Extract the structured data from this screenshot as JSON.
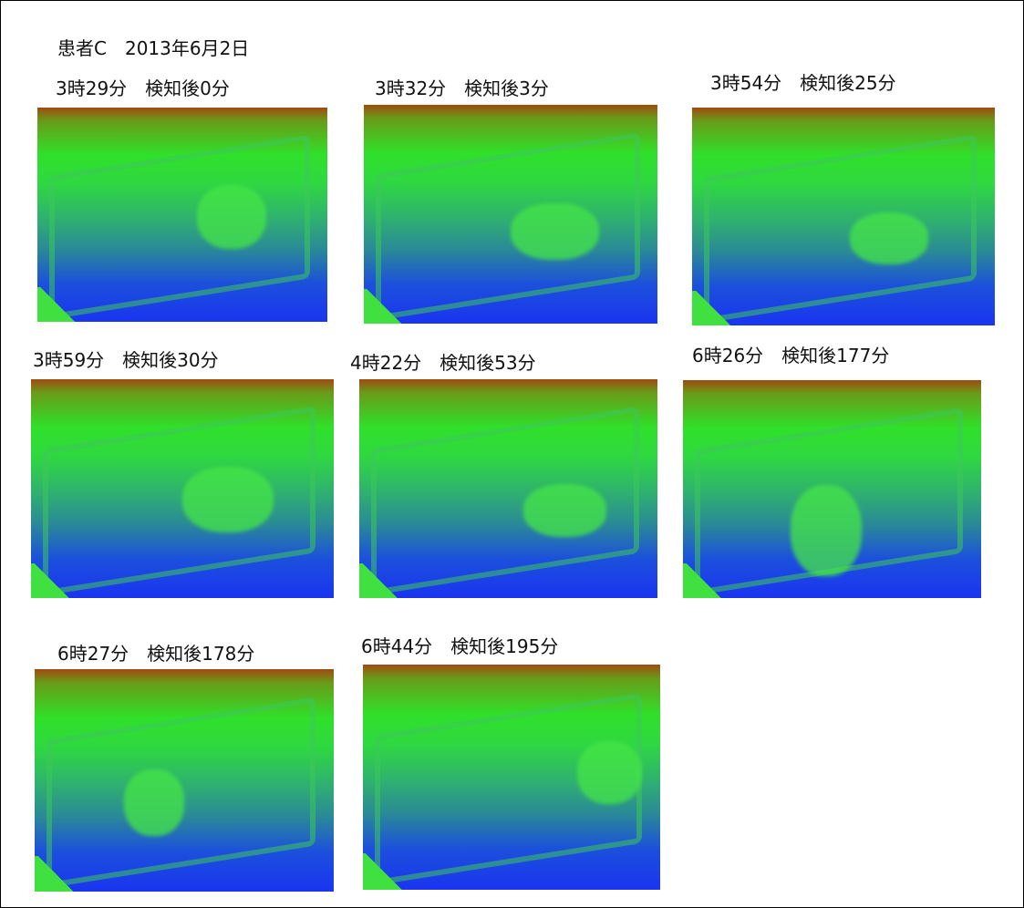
{
  "header": {
    "title": "患者C　2013年6月2日"
  },
  "panels": [
    {
      "label": "3時29分　検知後0分"
    },
    {
      "label": "3時32分　検知後3分"
    },
    {
      "label": "3時54分　検知後25分"
    },
    {
      "label": "3時59分　検知後30分"
    },
    {
      "label": "4時22分　検知後53分"
    },
    {
      "label": "6時26分　検知後177分"
    },
    {
      "label": "6時27分　検知後178分"
    },
    {
      "label": "6時44分　検知後195分"
    }
  ]
}
